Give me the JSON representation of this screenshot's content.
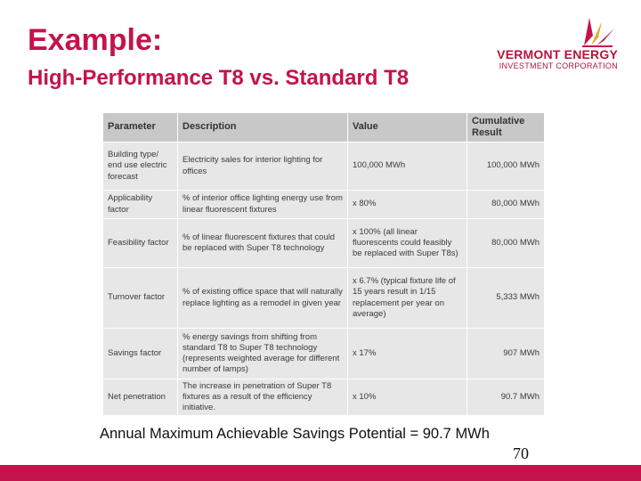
{
  "slide": {
    "title": "Example:",
    "subtitle": "High-Performance T8 vs. Standard T8",
    "footer_text": "Annual Maximum Achievable Savings Potential = 90.7 MWh",
    "page_number": "70"
  },
  "logo": {
    "name": "VERMONT ENERGY",
    "sub": "INVESTMENT CORPORATION",
    "icon": "ray-burst-icon"
  },
  "colors": {
    "accent": "#c4134a",
    "header_bg": "#c8c8c8",
    "cell_bg": "#e7e7e7"
  },
  "table": {
    "headers": [
      "Parameter",
      "Description",
      "Value",
      "Cumulative Result"
    ],
    "rows": [
      {
        "parameter": "Building type/ end use electric forecast",
        "description": "Electricity sales for interior lighting for offices",
        "value": "100,000 MWh",
        "result": "100,000 MWh"
      },
      {
        "parameter": "Applicability factor",
        "description": "% of interior office lighting energy use from linear fluorescent fixtures",
        "value": "x 80%",
        "result": "80,000 MWh"
      },
      {
        "parameter": "Feasibility factor",
        "description": "% of linear fluorescent fixtures that could be replaced with Super T8 technology",
        "value": "x 100% (all linear fluorescents could feasibly be replaced with Super T8s)",
        "result": "80,000 MWh"
      },
      {
        "parameter": "Turnover factor",
        "description": "% of existing office space that will naturally replace lighting as a remodel in given year",
        "value": "x 6.7% (typical fixture life of 15 years result in 1/15 replacement per year on average)",
        "result": "5,333 MWh"
      },
      {
        "parameter": "Savings factor",
        "description": "% energy savings from shifting from standard T8 to Super T8 technology (represents weighted average for different number of lamps)",
        "value": "x 17%",
        "result": "907 MWh"
      },
      {
        "parameter": "Net penetration",
        "description": "The increase in penetration of Super T8 fixtures as a result of the efficiency initiative.",
        "value": "x 10%",
        "result": "90.7 MWh"
      }
    ]
  }
}
